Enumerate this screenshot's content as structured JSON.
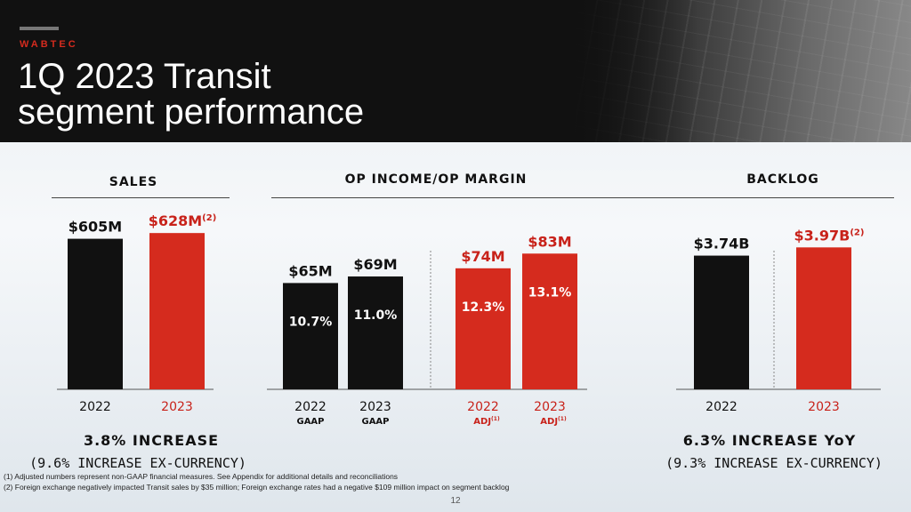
{
  "header": {
    "brand": "WABTEC",
    "title_line1": "1Q 2023 Transit",
    "title_line2": "segment performance"
  },
  "colors": {
    "black": "#111111",
    "red": "#d52b1e",
    "text_red": "#c8221a"
  },
  "sections": {
    "sales": "SALES",
    "op": "OP INCOME/OP MARGIN",
    "backlog": "BACKLOG"
  },
  "chart_data": [
    {
      "type": "bar",
      "title": "SALES",
      "unit": "$M",
      "categories": [
        "2022",
        "2023"
      ],
      "values": [
        605,
        628
      ],
      "value_labels": [
        "$605M",
        "$628M"
      ],
      "label_superscripts": [
        "",
        "(2)"
      ],
      "colors": [
        "black",
        "red"
      ],
      "ylim": [
        0,
        700
      ]
    },
    {
      "type": "bar",
      "title": "OP INCOME/OP MARGIN",
      "unit": "$M",
      "categories": [
        "2022",
        "2023",
        "2022",
        "2023"
      ],
      "category_sublabels": [
        "GAAP",
        "GAAP",
        "ADJ",
        "ADJ"
      ],
      "sublabel_superscripts": [
        "",
        "",
        "(1)",
        "(1)"
      ],
      "values": [
        65,
        69,
        74,
        83
      ],
      "value_labels": [
        "$65M",
        "$69M",
        "$74M",
        "$83M"
      ],
      "margins": [
        "10.7%",
        "11.0%",
        "12.3%",
        "13.1%"
      ],
      "colors": [
        "black",
        "black",
        "red",
        "red"
      ],
      "ylim": [
        0,
        100
      ]
    },
    {
      "type": "bar",
      "title": "BACKLOG",
      "unit": "$B",
      "categories": [
        "2022",
        "2023"
      ],
      "values": [
        3.74,
        3.97
      ],
      "value_labels": [
        "$3.74B",
        "$3.97B"
      ],
      "label_superscripts": [
        "",
        "(2)"
      ],
      "colors": [
        "black",
        "red"
      ],
      "ylim": [
        0,
        4.5
      ]
    }
  ],
  "summaries": {
    "sales_increase": "3.8% INCREASE",
    "sales_ex_currency": "(9.6% INCREASE EX-CURRENCY)",
    "backlog_increase": "6.3% INCREASE YoY",
    "backlog_ex_currency": "(9.3% INCREASE EX-CURRENCY)"
  },
  "footnotes": {
    "fn1": "(1)   Adjusted numbers represent non-GAAP financial measures. See Appendix for additional details and reconciliations",
    "fn2": "(2)   Foreign exchange negatively impacted Transit sales by $35 million; Foreign exchange rates had a negative $109 million impact on segment backlog"
  },
  "page_number": "12"
}
